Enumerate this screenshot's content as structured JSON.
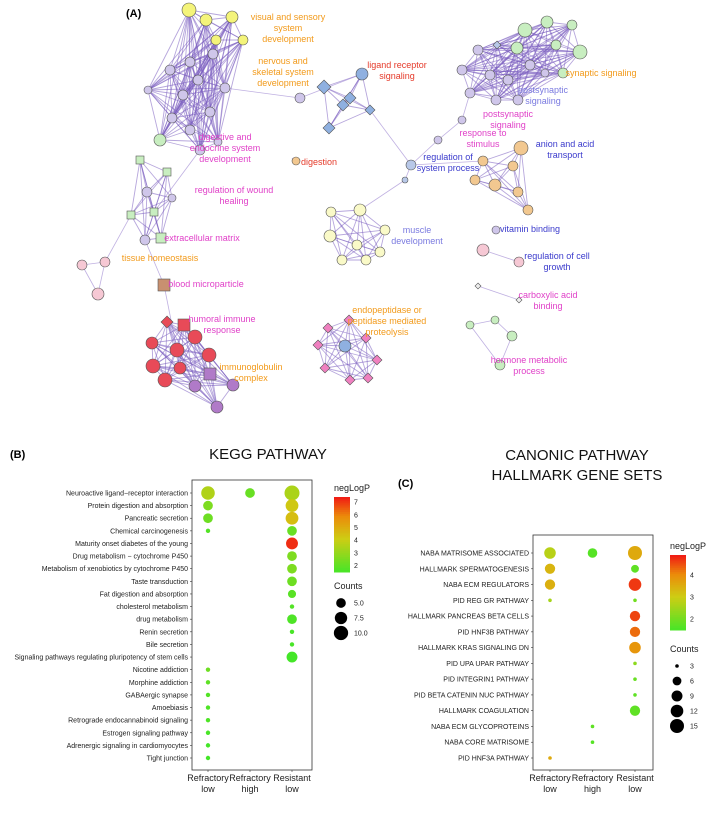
{
  "network": {
    "panel_label": "(A)",
    "labels": [
      {
        "text": "visual and sensory system development",
        "color": "#f29a1a"
      },
      {
        "text": "nervous and skeletal system development",
        "color": "#f29a1a"
      },
      {
        "text": "ligand receptor signaling",
        "color": "#e53a2a"
      },
      {
        "text": "synaptic signaling",
        "color": "#f29a1a"
      },
      {
        "text": "postsynaptic signaling",
        "color": "#7a7ae0"
      },
      {
        "text": "postsynaptic signaling",
        "color": "#e040c8"
      },
      {
        "text": "response to stimulus",
        "color": "#e040c8"
      },
      {
        "text": "digestive and endocrine system development",
        "color": "#e040c8"
      },
      {
        "text": "digestion",
        "color": "#e53a2a"
      },
      {
        "text": "regulation of system process",
        "color": "#3a3acc"
      },
      {
        "text": "anion and acid transport",
        "color": "#3a3acc"
      },
      {
        "text": "regulation of wound healing",
        "color": "#e040c8"
      },
      {
        "text": "extracellular matrix",
        "color": "#e040c8"
      },
      {
        "text": "tissue homeostasis",
        "color": "#f29a1a"
      },
      {
        "text": "muscle development",
        "color": "#7a7ae0"
      },
      {
        "text": "vitamin binding",
        "color": "#3a3acc"
      },
      {
        "text": "regulation of cell growth",
        "color": "#3a3acc"
      },
      {
        "text": "blood microparticle",
        "color": "#e040c8"
      },
      {
        "text": "carboxylic acid binding",
        "color": "#e040c8"
      },
      {
        "text": "humoral immune response",
        "color": "#e040c8"
      },
      {
        "text": "endopeptidase or peptidase mediated proteolysis",
        "color": "#f29a1a"
      },
      {
        "text": "immunoglobulin complex",
        "color": "#f29a1a"
      },
      {
        "text": "hormone metabolic process",
        "color": "#e040c8"
      }
    ]
  },
  "chart_data": [
    {
      "type": "scatter",
      "panel_label": "(B)",
      "title": "KEGG PATHWAY",
      "xlabel": "",
      "ylabel": "",
      "x_categories": [
        [
          "Refractory",
          "low"
        ],
        [
          "Refractory",
          "high"
        ],
        [
          "Resistant",
          "low"
        ]
      ],
      "y_categories": [
        "Neuroactive ligand−receptor interaction",
        "Protein digestion and absorption",
        "Pancreatic secretion",
        "Chemical carcinogenesis",
        "Maturity onset diabetes of the young",
        "Drug metabolism − cytochrome P450",
        "Metabolism of xenobiotics by cytochrome P450",
        "Taste transduction",
        "Fat digestion and absorption",
        "cholesterol metabolism",
        "drug metabolism",
        "Renin secretion",
        "Bile secretion",
        "Signaling pathways regulating pluripotency of stem cells",
        "Nicotine addiction",
        "Morphine addiction",
        "GABAergic synapse",
        "Amoebiasis",
        "Retrograde endocannabinoid signaling",
        "Estrogen signaling pathway",
        "Adrenergic signaling in cardiomyocytes",
        "Tight junction"
      ],
      "points": [
        {
          "x": 0,
          "y": 0,
          "count": 9,
          "negLogP": 3.6
        },
        {
          "x": 1,
          "y": 0,
          "count": 5,
          "negLogP": 2.2
        },
        {
          "x": 2,
          "y": 0,
          "count": 11,
          "negLogP": 3.5
        },
        {
          "x": 0,
          "y": 1,
          "count": 5,
          "negLogP": 2.6
        },
        {
          "x": 2,
          "y": 1,
          "count": 8,
          "negLogP": 4.3
        },
        {
          "x": 0,
          "y": 2,
          "count": 5,
          "negLogP": 2.3
        },
        {
          "x": 2,
          "y": 2,
          "count": 8,
          "negLogP": 4.6
        },
        {
          "x": 0,
          "y": 3,
          "count": 3,
          "negLogP": 1.8
        },
        {
          "x": 2,
          "y": 3,
          "count": 5,
          "negLogP": 2.2
        },
        {
          "x": 2,
          "y": 4,
          "count": 7,
          "negLogP": 7.2
        },
        {
          "x": 2,
          "y": 5,
          "count": 5,
          "negLogP": 2.6
        },
        {
          "x": 2,
          "y": 6,
          "count": 5,
          "negLogP": 2.6
        },
        {
          "x": 2,
          "y": 7,
          "count": 5,
          "negLogP": 2.3
        },
        {
          "x": 2,
          "y": 8,
          "count": 4,
          "negLogP": 1.9
        },
        {
          "x": 2,
          "y": 9,
          "count": 3,
          "negLogP": 1.8
        },
        {
          "x": 2,
          "y": 10,
          "count": 5,
          "negLogP": 1.7
        },
        {
          "x": 2,
          "y": 11,
          "count": 3,
          "negLogP": 1.6
        },
        {
          "x": 2,
          "y": 12,
          "count": 3,
          "negLogP": 1.6
        },
        {
          "x": 2,
          "y": 13,
          "count": 6,
          "negLogP": 1.5
        },
        {
          "x": 0,
          "y": 14,
          "count": 3,
          "negLogP": 2.3
        },
        {
          "x": 0,
          "y": 15,
          "count": 3,
          "negLogP": 2.0
        },
        {
          "x": 0,
          "y": 16,
          "count": 3,
          "negLogP": 1.8
        },
        {
          "x": 0,
          "y": 17,
          "count": 3,
          "negLogP": 1.7
        },
        {
          "x": 0,
          "y": 18,
          "count": 3,
          "negLogP": 1.7
        },
        {
          "x": 0,
          "y": 19,
          "count": 3,
          "negLogP": 1.6
        },
        {
          "x": 0,
          "y": 20,
          "count": 3,
          "negLogP": 1.5
        },
        {
          "x": 0,
          "y": 21,
          "count": 3,
          "negLogP": 1.5
        }
      ],
      "legend": {
        "color_title": "negLogP",
        "color_ticks": [
          2,
          3,
          4,
          5,
          6,
          7
        ],
        "color_range": [
          1.5,
          7.4
        ],
        "size_title": "Counts",
        "size_ticks": [
          5.0,
          7.5,
          10.0
        ],
        "size_tick_labels": [
          "5.0",
          "7.5",
          "10.0"
        ],
        "size_range": [
          3,
          11
        ]
      }
    },
    {
      "type": "scatter",
      "panel_label": "(C)",
      "title": [
        "CANONIC PATHWAY",
        "HALLMARK GENE SETS"
      ],
      "xlabel": "",
      "ylabel": "",
      "x_categories": [
        [
          "Refractory",
          "low"
        ],
        [
          "Refractory",
          "high"
        ],
        [
          "Resistant",
          "low"
        ]
      ],
      "y_categories": [
        "NABA MATRISOME ASSOCIATED",
        "HALLMARK SPERMATOGENESIS",
        "NABA ECM REGULATORS",
        "PID REG GR PATHWAY",
        "HALLMARK PANCREAS BETA CELLS",
        "PID HNF3B PATHWAY",
        "HALLMARK KRAS SIGNALING DN",
        "PID UPA UPAR PATHWAY",
        "PID INTEGRIN1 PATHWAY",
        "PID BETA CATENIN NUC PATHWAY",
        "HALLMARK COAGULATION",
        "NABA ECM GLYCOPROTEINS",
        "NABA CORE MATRISOME",
        "PID HNF3A PATHWAY"
      ],
      "points": [
        {
          "x": 0,
          "y": 0,
          "count": 10,
          "negLogP": 2.8
        },
        {
          "x": 1,
          "y": 0,
          "count": 7,
          "negLogP": 1.7
        },
        {
          "x": 2,
          "y": 0,
          "count": 15,
          "negLogP": 3.6
        },
        {
          "x": 0,
          "y": 1,
          "count": 8,
          "negLogP": 3.4
        },
        {
          "x": 2,
          "y": 1,
          "count": 5,
          "negLogP": 1.8
        },
        {
          "x": 0,
          "y": 2,
          "count": 8,
          "negLogP": 3.5
        },
        {
          "x": 2,
          "y": 2,
          "count": 12,
          "negLogP": 4.7
        },
        {
          "x": 0,
          "y": 3,
          "count": 3,
          "negLogP": 2.6
        },
        {
          "x": 2,
          "y": 3,
          "count": 3,
          "negLogP": 2.0
        },
        {
          "x": 2,
          "y": 4,
          "count": 8,
          "negLogP": 4.6
        },
        {
          "x": 2,
          "y": 5,
          "count": 8,
          "negLogP": 4.3
        },
        {
          "x": 2,
          "y": 6,
          "count": 10,
          "negLogP": 3.9
        },
        {
          "x": 2,
          "y": 7,
          "count": 3,
          "negLogP": 2.3
        },
        {
          "x": 2,
          "y": 8,
          "count": 3,
          "negLogP": 1.9
        },
        {
          "x": 2,
          "y": 9,
          "count": 3,
          "negLogP": 1.8
        },
        {
          "x": 2,
          "y": 10,
          "count": 8,
          "negLogP": 1.8
        },
        {
          "x": 1,
          "y": 11,
          "count": 3,
          "negLogP": 1.8
        },
        {
          "x": 1,
          "y": 12,
          "count": 3,
          "negLogP": 1.7
        },
        {
          "x": 0,
          "y": 13,
          "count": 3,
          "negLogP": 3.6
        }
      ],
      "legend": {
        "color_title": "negLogP",
        "color_ticks": [
          2,
          3,
          4
        ],
        "color_range": [
          1.5,
          4.9
        ],
        "size_title": "Counts",
        "size_ticks": [
          3,
          6,
          9,
          12,
          15
        ],
        "size_tick_labels": [
          "3",
          "6",
          "9",
          "12",
          "15"
        ],
        "size_range": [
          3,
          15
        ]
      }
    }
  ]
}
